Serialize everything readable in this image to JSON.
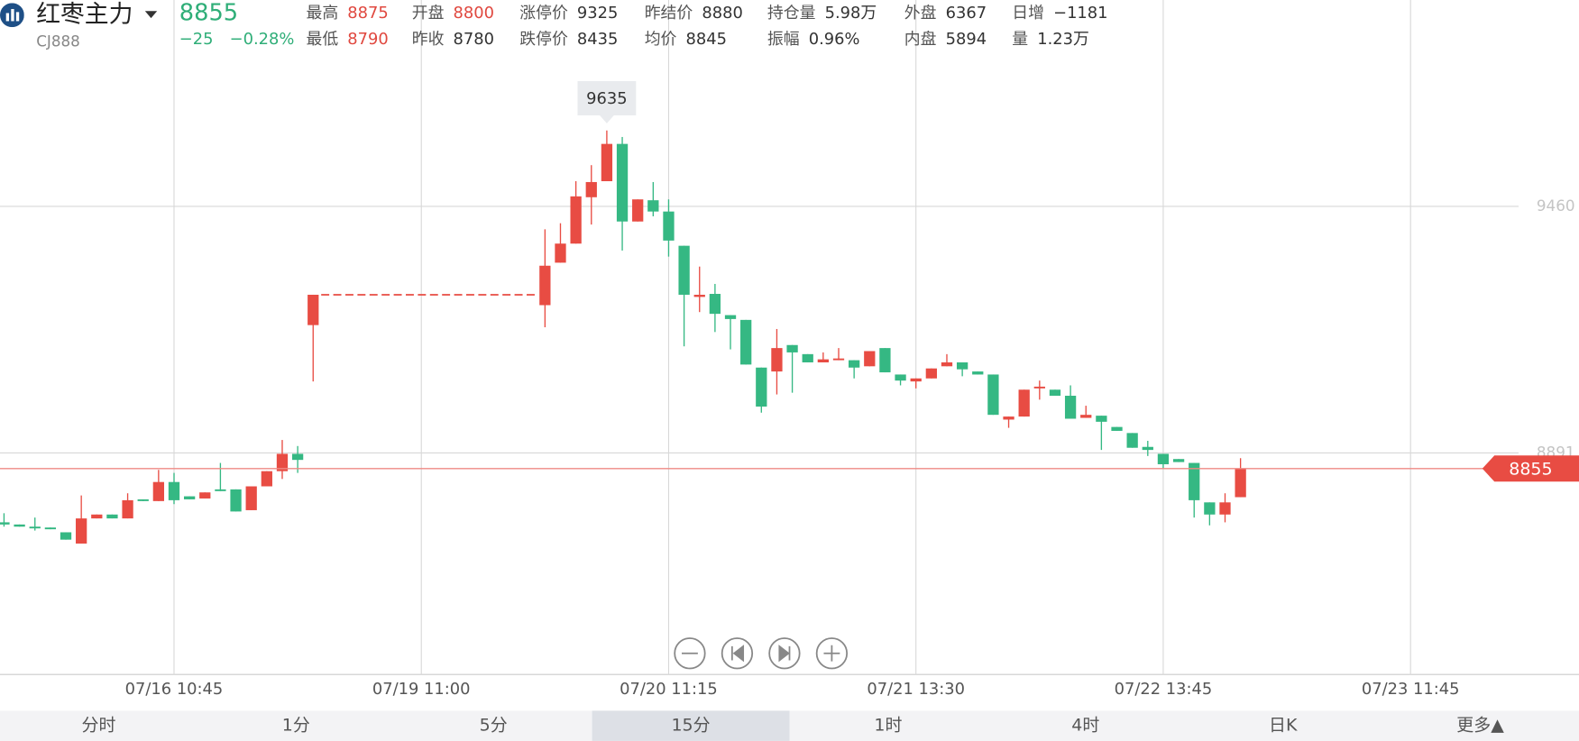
{
  "header": {
    "name": "红枣主力",
    "code": "CJ888",
    "price": "8855",
    "change": "−25",
    "change_pct": "−0.28%",
    "stats": [
      [
        {
          "label": "最高",
          "value": "8875",
          "color": "#e0483f"
        },
        {
          "label": "开盘",
          "value": "8800",
          "color": "#e0483f"
        },
        {
          "label": "涨停价",
          "value": "9325"
        },
        {
          "label": "昨结价",
          "value": "8880"
        },
        {
          "label": "持仓量",
          "value": "5.98万"
        },
        {
          "label": "外盘",
          "value": "6367"
        },
        {
          "label": "日增",
          "value": "−1181"
        }
      ],
      [
        {
          "label": "最低",
          "value": "8790",
          "color": "#e0483f"
        },
        {
          "label": "昨收",
          "value": "8780"
        },
        {
          "label": "跌停价",
          "value": "8435"
        },
        {
          "label": "均价",
          "value": "8845"
        },
        {
          "label": "振幅",
          "value": "0.96%"
        },
        {
          "label": "内盘",
          "value": "5894"
        },
        {
          "label": "量",
          "value": "1.23万"
        }
      ]
    ]
  },
  "chart_data": {
    "type": "candlestick",
    "up_color": "#e84c43",
    "down_color": "#35b883",
    "grid": true,
    "ylim": [
      8380,
      9936
    ],
    "yticks": [
      8891,
      9460
    ],
    "xlim": [
      -0.26,
      101.9
    ],
    "xticks": [
      {
        "value": 11,
        "label": "07/16 10:45"
      },
      {
        "value": 27,
        "label": "07/19 11:00"
      },
      {
        "value": 43,
        "label": "07/20 11:15"
      },
      {
        "value": 59,
        "label": "07/21 13:30"
      },
      {
        "value": 75,
        "label": "07/22 13:45"
      },
      {
        "value": 91,
        "label": "07/23 11:45"
      }
    ],
    "open": [
      8731,
      8726,
      8721,
      8719,
      8708,
      8682,
      8740,
      8749,
      8740,
      8784,
      8780,
      8824,
      8791,
      8786,
      8807,
      8807,
      8759,
      8814,
      8849,
      8889,
      9186,
      null,
      null,
      null,
      null,
      null,
      null,
      null,
      null,
      null,
      null,
      null,
      null,
      null,
      null,
      9232,
      9330,
      9374,
      9481,
      9518,
      9604,
      9425,
      9474,
      9448,
      9369,
      9251,
      9258,
      9209,
      9198,
      9088,
      9079,
      9140,
      9119,
      9100,
      9105,
      9105,
      9091,
      9133,
      9072,
      9056,
      9063,
      9091,
      9100,
      9079,
      9072,
      8968,
      8975,
      9040,
      9037,
      9023,
      8972,
      8977,
      8951,
      8937,
      8905,
      8889,
      8877,
      8868,
      8777,
      8749,
      8789
    ],
    "high": [
      8752,
      8726,
      8742,
      8719,
      8708,
      8793,
      8749,
      8749,
      8798,
      8784,
      8852,
      8845,
      8791,
      8800,
      8868,
      8807,
      8814,
      8849,
      8921,
      8907,
      9256,
      null,
      null,
      null,
      null,
      null,
      null,
      null,
      null,
      null,
      null,
      null,
      null,
      null,
      null,
      9407,
      9421,
      9518,
      9555,
      9635,
      9620,
      9476,
      9516,
      9476,
      9369,
      9321,
      9281,
      9209,
      9198,
      9088,
      9177,
      9140,
      9119,
      9123,
      9133,
      9105,
      9126,
      9133,
      9072,
      9063,
      9086,
      9119,
      9100,
      9079,
      9072,
      8975,
      9037,
      9058,
      9037,
      9047,
      9000,
      8977,
      8951,
      8937,
      8919,
      8889,
      8877,
      8868,
      8777,
      8798,
      8879
    ],
    "low": [
      8721,
      8721,
      8712,
      8715,
      8691,
      8682,
      8740,
      8740,
      8740,
      8780,
      8780,
      8773,
      8784,
      8786,
      8803,
      8756,
      8759,
      8814,
      8831,
      8845,
      9056,
      null,
      null,
      null,
      null,
      null,
      null,
      null,
      null,
      null,
      null,
      null,
      null,
      null,
      null,
      9181,
      9330,
      9374,
      9418,
      9518,
      9358,
      9425,
      9437,
      9344,
      9137,
      9216,
      9170,
      9130,
      9095,
      8984,
      9026,
      9030,
      9100,
      9100,
      9105,
      9063,
      9091,
      9077,
      9047,
      9040,
      9063,
      9091,
      9068,
      9072,
      8979,
      8949,
      8975,
      9014,
      9023,
      8970,
      8972,
      8898,
      8942,
      8903,
      8884,
      8854,
      8870,
      8742,
      8724,
      8731,
      8789
    ],
    "close": [
      8726,
      8721,
      8717,
      8715,
      8691,
      8740,
      8749,
      8740,
      8782,
      8780,
      8824,
      8782,
      8784,
      8800,
      8803,
      8756,
      8814,
      8849,
      8889,
      8875,
      9256,
      null,
      null,
      null,
      null,
      null,
      null,
      null,
      null,
      null,
      null,
      null,
      null,
      null,
      null,
      9323,
      9374,
      9483,
      9516,
      9604,
      9425,
      9476,
      9448,
      9381,
      9256,
      9256,
      9212,
      9200,
      9095,
      8998,
      9133,
      9123,
      9100,
      9107,
      9109,
      9088,
      9126,
      9077,
      9058,
      9063,
      9086,
      9100,
      9084,
      9072,
      8979,
      8975,
      9037,
      9044,
      9023,
      8970,
      8979,
      8963,
      8942,
      8903,
      8898,
      8865,
      8870,
      8782,
      8749,
      8777,
      8855
    ],
    "last_price": 8855,
    "max_label": 9635
  },
  "tabs": {
    "items": [
      "分时",
      "1分",
      "5分",
      "15分",
      "1时",
      "4时",
      "日K",
      "更多▲"
    ],
    "selected": 3
  }
}
